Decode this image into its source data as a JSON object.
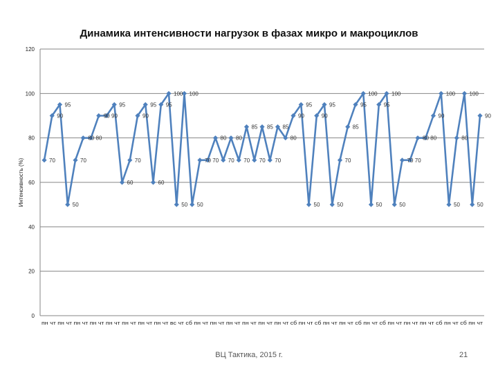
{
  "chart_data": {
    "type": "line",
    "title": "Динамика интенсивности нагрузок в фазах микро и макроциклов",
    "xlabel": "",
    "ylabel": "Интенсивность (%)",
    "ylim": [
      0,
      120
    ],
    "yticks": [
      0,
      20,
      40,
      60,
      80,
      100,
      120
    ],
    "grid": "horizontal",
    "legend": "none",
    "line_color": "#4f81bd",
    "marker_color": "#4f81bd",
    "x_labels_text": "пн чт пн чт пн чт пн чт пн чт пн чт пн чт пн чт вс чт сб пн чт пн чт пн чт пн чт пн чт пн чт сб пн чт сб пн чт пн чт сб пн чт сб пн чт пн чт пн чт сб пн чт сб пн чт",
    "values": [
      70,
      90,
      95,
      50,
      70,
      80,
      80,
      90,
      90,
      95,
      60,
      70,
      90,
      95,
      60,
      95,
      100,
      50,
      100,
      50,
      70,
      70,
      80,
      70,
      80,
      70,
      85,
      70,
      85,
      70,
      85,
      80,
      90,
      95,
      50,
      90,
      95,
      50,
      70,
      85,
      95,
      100,
      50,
      95,
      100,
      50,
      70,
      70,
      80,
      80,
      90,
      100,
      50,
      80,
      100,
      50,
      90
    ],
    "data_labels": [
      "70",
      "90",
      "95",
      "50",
      "70",
      "80",
      "80",
      "90",
      "90",
      "95",
      "60",
      "70",
      "90",
      "95",
      "60",
      "95",
      "100",
      "50",
      "100",
      "50",
      "70",
      "70",
      "80",
      "70",
      "80",
      "70",
      "85",
      "70",
      "85",
      "70",
      "85",
      "80",
      "90",
      "95",
      "50",
      "90",
      "95",
      "50",
      "70",
      "85",
      "95",
      "100",
      "50",
      "95",
      "100",
      "50",
      "70",
      "70",
      "80",
      "80",
      "90",
      "100",
      "50",
      "80",
      "100",
      "50",
      "90"
    ]
  },
  "footer": {
    "source": "ВЦ Тактика, 2015 г.",
    "page": "21"
  }
}
